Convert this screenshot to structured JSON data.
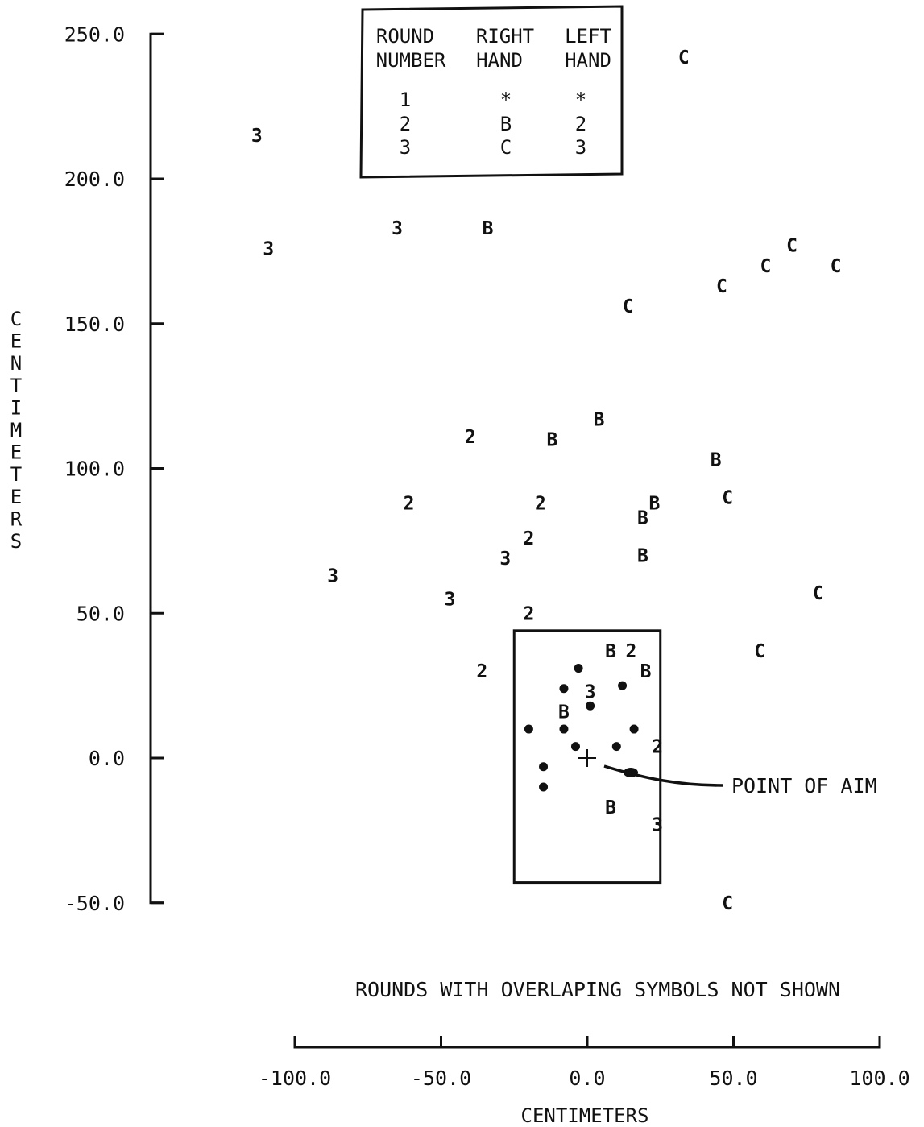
{
  "chart_data": {
    "type": "scatter",
    "x_axis": {
      "label": "CENTIMETERS",
      "range": [
        -100,
        100
      ],
      "ticks": [
        -100,
        -50,
        0,
        50,
        100
      ],
      "tick_labels": [
        "-100.0",
        "-50.0",
        "0.0",
        "50.0",
        "100.0"
      ]
    },
    "y_axis": {
      "label": "CENTIMETERS",
      "range": [
        -50,
        250
      ],
      "ticks": [
        -50,
        0,
        50,
        100,
        150,
        200,
        250
      ],
      "tick_labels": [
        "-50.0",
        "0.0",
        "50.0",
        "100.0",
        "150.0",
        "200.0",
        "250.0"
      ]
    },
    "legend": {
      "headers": [
        [
          "ROUND",
          "NUMBER"
        ],
        [
          "RIGHT",
          "HAND"
        ],
        [
          "LEFT",
          "HAND"
        ]
      ],
      "rows": [
        [
          "1",
          "*",
          "*"
        ],
        [
          "2",
          "B",
          "2"
        ],
        [
          "3",
          "C",
          "3"
        ]
      ]
    },
    "note": "ROUNDS WITH OVERLAPING SYMBOLS NOT SHOWN",
    "point_of_aim": {
      "label": "POINT OF AIM",
      "x": 0,
      "y": 0
    },
    "target_box": {
      "x": [
        -25,
        25
      ],
      "y": [
        -43,
        44
      ]
    },
    "series": [
      {
        "symbol": "dot",
        "points": [
          [
            -3,
            31
          ],
          [
            -8,
            24
          ],
          [
            12,
            25
          ],
          [
            1,
            18
          ],
          [
            -20,
            10
          ],
          [
            -8,
            10
          ],
          [
            16,
            10
          ],
          [
            -4,
            4
          ],
          [
            10,
            4
          ],
          [
            -15,
            -3
          ],
          [
            -15,
            -10
          ]
        ]
      },
      {
        "symbol": "B",
        "points": [
          [
            -34,
            183
          ],
          [
            4,
            117
          ],
          [
            -12,
            110
          ],
          [
            44,
            103
          ],
          [
            23,
            88
          ],
          [
            19,
            83
          ],
          [
            19,
            70
          ],
          [
            8,
            37
          ],
          [
            20,
            30
          ],
          [
            -8,
            16
          ],
          [
            8,
            -17
          ]
        ]
      },
      {
        "symbol": "C",
        "points": [
          [
            33,
            242
          ],
          [
            70,
            177
          ],
          [
            61,
            170
          ],
          [
            85,
            170
          ],
          [
            46,
            163
          ],
          [
            14,
            156
          ],
          [
            48,
            90
          ],
          [
            79,
            57
          ],
          [
            59,
            37
          ],
          [
            48,
            -50
          ]
        ]
      },
      {
        "symbol": "2",
        "points": [
          [
            -40,
            111
          ],
          [
            -61,
            88
          ],
          [
            -16,
            88
          ],
          [
            -20,
            76
          ],
          [
            -20,
            50
          ],
          [
            -36,
            30
          ],
          [
            15,
            37
          ],
          [
            24,
            4
          ]
        ]
      },
      {
        "symbol": "3",
        "points": [
          [
            -113,
            215
          ],
          [
            -109,
            176
          ],
          [
            -65,
            183
          ],
          [
            -87,
            63
          ],
          [
            -47,
            55
          ],
          [
            -28,
            69
          ],
          [
            1,
            23
          ],
          [
            24,
            -23
          ]
        ]
      }
    ]
  }
}
